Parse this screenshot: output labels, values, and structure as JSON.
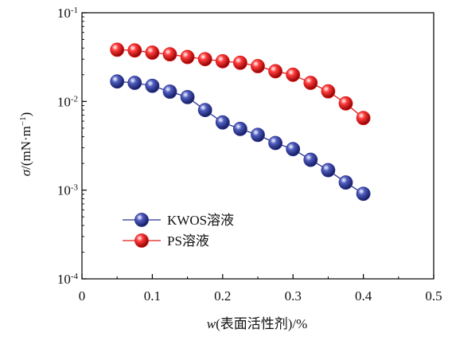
{
  "chart_data": {
    "type": "line",
    "title": "",
    "xlabel_var": "w",
    "xlabel_rest": "(表面活性剂)/%",
    "ylabel_var": "σ",
    "ylabel_rest": "/(mN·m",
    "ylabel_exp": "−1",
    "ylabel_close": ")",
    "x_scale": "linear",
    "y_scale": "log",
    "xlim": [
      0,
      0.5
    ],
    "ylim": [
      0.0001,
      0.1
    ],
    "x_ticks": [
      {
        "value": 0,
        "label": "0"
      },
      {
        "value": 0.1,
        "label": "0.1"
      },
      {
        "value": 0.2,
        "label": "0.2"
      },
      {
        "value": 0.3,
        "label": "0.3"
      },
      {
        "value": 0.4,
        "label": "0.4"
      },
      {
        "value": 0.5,
        "label": "0.5"
      }
    ],
    "y_ticks": [
      {
        "value": 0.1,
        "base": "10",
        "exp": "-1"
      },
      {
        "value": 0.01,
        "base": "10",
        "exp": "-2"
      },
      {
        "value": 0.001,
        "base": "10",
        "exp": "-3"
      },
      {
        "value": 0.0001,
        "base": "10",
        "exp": "-4"
      }
    ],
    "grid": false,
    "legend_position": "bottom-left",
    "series": [
      {
        "name": "KWOS溶液",
        "color": "#2b3590",
        "x": [
          0.05,
          0.075,
          0.1,
          0.125,
          0.15,
          0.175,
          0.2,
          0.225,
          0.25,
          0.275,
          0.3,
          0.325,
          0.35,
          0.375,
          0.4
        ],
        "y": [
          0.0168,
          0.0162,
          0.015,
          0.0129,
          0.0112,
          0.008,
          0.0058,
          0.0049,
          0.0042,
          0.0034,
          0.0029,
          0.0022,
          0.00168,
          0.00122,
          0.00091
        ]
      },
      {
        "name": "PS溶液",
        "color": "#e01a1a",
        "x": [
          0.05,
          0.075,
          0.1,
          0.125,
          0.15,
          0.175,
          0.2,
          0.225,
          0.25,
          0.275,
          0.3,
          0.325,
          0.35,
          0.375,
          0.4
        ],
        "y": [
          0.0383,
          0.0376,
          0.0355,
          0.034,
          0.0317,
          0.03,
          0.0284,
          0.0273,
          0.025,
          0.0219,
          0.02,
          0.0162,
          0.013,
          0.0095,
          0.0065
        ]
      }
    ]
  }
}
